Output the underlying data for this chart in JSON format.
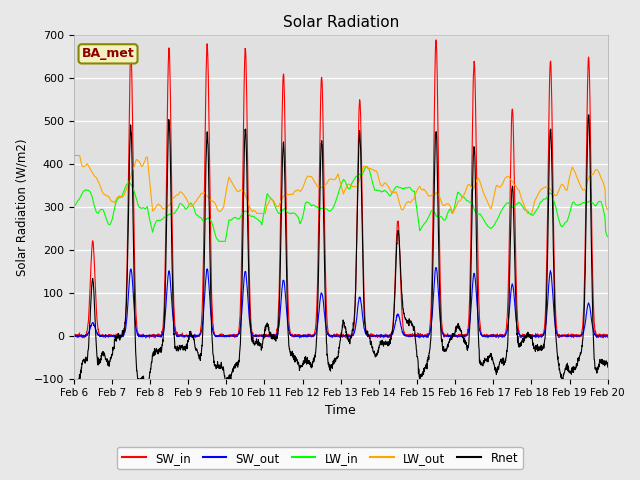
{
  "title": "Solar Radiation",
  "ylabel": "Solar Radiation (W/m2)",
  "xlabel": "Time",
  "ylim": [
    -100,
    700
  ],
  "yticks": [
    -100,
    0,
    100,
    200,
    300,
    400,
    500,
    600,
    700
  ],
  "fig_bg": "#e8e8e8",
  "plot_bg": "#e0e0e0",
  "legend_entries": [
    "SW_in",
    "SW_out",
    "LW_in",
    "LW_out",
    "Rnet"
  ],
  "legend_colors": [
    "red",
    "blue",
    "lime",
    "orange",
    "black"
  ],
  "annotation": "BA_met",
  "xlabels": [
    "Feb 6",
    "Feb 7",
    "Feb 8",
    "Feb 9",
    "Feb 10",
    "Feb 11",
    "Feb 12",
    "Feb 13",
    "Feb 14",
    "Feb 15",
    "Feb 16",
    "Feb 17",
    "Feb 18",
    "Feb 19",
    "Feb 20"
  ],
  "sw_in_peaks": [
    220,
    660,
    670,
    680,
    670,
    610,
    605,
    550,
    270,
    690,
    640,
    530,
    640,
    650
  ],
  "sw_out_peaks": [
    30,
    155,
    150,
    155,
    150,
    130,
    100,
    90,
    50,
    160,
    145,
    120,
    150,
    75
  ],
  "lw_in_base": [
    295,
    310,
    270,
    250,
    265,
    285,
    295,
    355,
    330,
    265,
    285,
    285,
    285,
    295
  ],
  "lw_out_base": [
    370,
    360,
    305,
    305,
    310,
    315,
    355,
    360,
    320,
    315,
    325,
    330,
    330,
    360
  ],
  "n_days": 14,
  "n_pts": 2016
}
